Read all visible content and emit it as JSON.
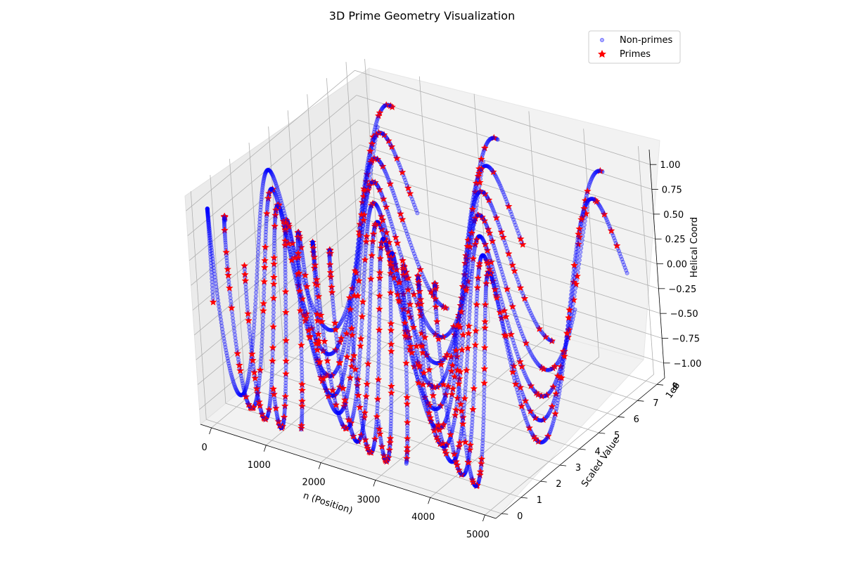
{
  "chart_data": {
    "type": "scatter",
    "projection": "3d",
    "title": "3D Prime Geometry Visualization",
    "xlabel": "n (Position)",
    "ylabel": "Scaled Value",
    "zlabel": "Helical Coord",
    "y_offset_text": "1e6",
    "xlim": [
      -200,
      5200
    ],
    "ylim": [
      -300000,
      8400000
    ],
    "zlim": [
      -1.15,
      1.15
    ],
    "x_ticks": [
      0,
      1000,
      2000,
      3000,
      4000,
      5000
    ],
    "x_tick_labels": [
      "0",
      "1000",
      "2000",
      "3000",
      "4000",
      "5000"
    ],
    "y_ticks": [
      0,
      1000000,
      2000000,
      3000000,
      4000000,
      5000000,
      6000000,
      7000000,
      8000000
    ],
    "y_tick_labels": [
      "0",
      "1",
      "2",
      "3",
      "4",
      "5",
      "6",
      "7",
      "8"
    ],
    "z_ticks": [
      -1.0,
      -0.75,
      -0.5,
      -0.25,
      0.0,
      0.25,
      0.5,
      0.75,
      1.0
    ],
    "z_tick_labels": [
      "−1.00",
      "−0.75",
      "−0.50",
      "−0.25",
      "0.00",
      "0.25",
      "0.50",
      "0.75",
      "1.00"
    ],
    "grid": true,
    "legend_position": "top-right",
    "series": [
      {
        "name": "Non-primes",
        "marker": "circle",
        "color": "#0000ff",
        "alpha": 0.3,
        "n_range": [
          1,
          5000
        ],
        "y_model": "approx n^2/3 (≈8e6 at n=5000)",
        "z_model": "sin of helical angle"
      },
      {
        "name": "Primes",
        "marker": "star",
        "color": "#ff0000",
        "alpha": 1.0,
        "n_range": [
          2,
          5000
        ]
      }
    ],
    "colors": {
      "non_primes": "#0000ff",
      "primes": "#ff0000",
      "pane_bg": "#f2f2f2",
      "grid": "#b0b0b0"
    }
  }
}
